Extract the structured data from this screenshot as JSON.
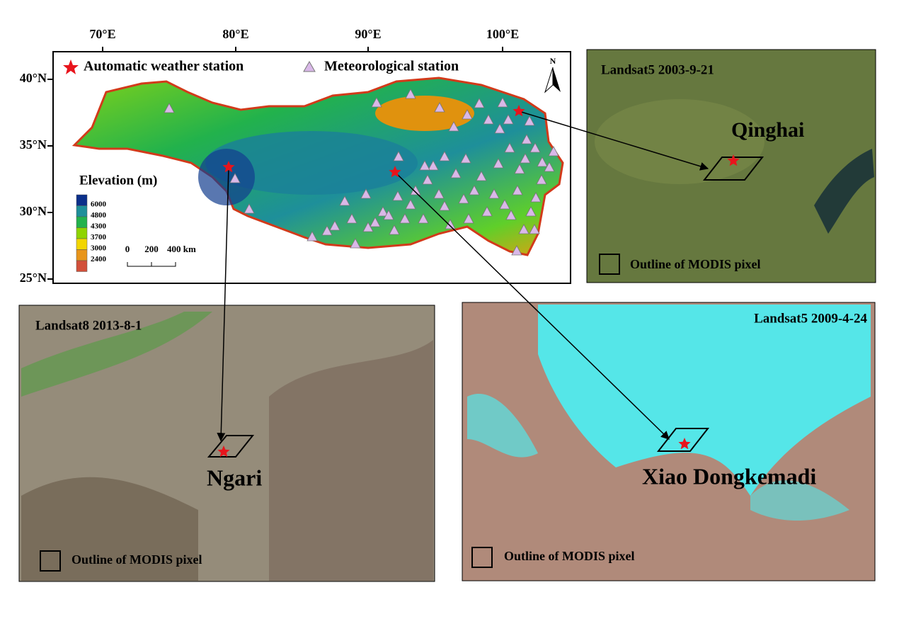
{
  "main_map": {
    "lon_ticks": [
      "70°E",
      "80°E",
      "90°E",
      "100°E"
    ],
    "lat_ticks": [
      "40°N",
      "35°N",
      "30°N",
      "25°N"
    ],
    "legend": {
      "automatic": "Automatic weather station",
      "meteorological": "Meteorological station"
    },
    "north": "N",
    "elevation": {
      "title": "Elevation (m)",
      "classes": [
        6000,
        4800,
        4300,
        3700,
        3000,
        2400
      ]
    },
    "scale_bar": [
      "0",
      "200",
      "400 km"
    ]
  },
  "panels": [
    {
      "date": "Landsat5 2003-9-21",
      "site": "Qinghai",
      "outline": "Outline of MODIS pixel"
    },
    {
      "date": "Landsat8 2013-8-1",
      "site": "Ngari",
      "outline": "Outline of MODIS pixel"
    },
    {
      "date": "Landsat5 2009-4-24",
      "site": "Xiao Dongkemadi",
      "outline": "Outline of MODIS pixel"
    }
  ]
}
